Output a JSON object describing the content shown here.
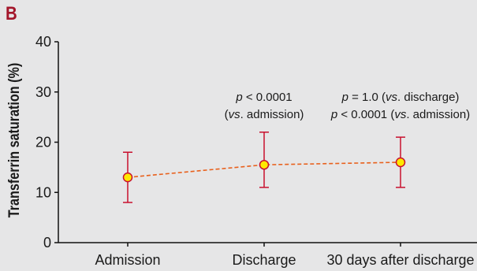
{
  "panel_label": "B",
  "chart_data": {
    "type": "line",
    "title": "",
    "xlabel": "",
    "ylabel": "Transferrin saturation (%)",
    "ylim": [
      0,
      40
    ],
    "yticks": [
      "0",
      "10",
      "20",
      "30",
      "40"
    ],
    "grid": false,
    "categories": [
      "Admission",
      "Discharge",
      "30 days after discharge"
    ],
    "series": [
      {
        "values": [
          13,
          15.5,
          16
        ],
        "error_low": [
          8,
          11,
          11
        ],
        "error_high": [
          18,
          22,
          21
        ],
        "line_color": "#e8601c",
        "line_style": "dashed",
        "marker_fill": "#ffe800",
        "marker_edge": "#c8102e",
        "errorbar_color": "#c8102e"
      }
    ],
    "annotations": [
      {
        "category_index": 1,
        "lines": [
          [
            {
              "t": "p",
              "i": true
            },
            {
              "t": " < 0.0001",
              "i": false
            }
          ],
          [
            {
              "t": "(",
              "i": false
            },
            {
              "t": "vs",
              "i": true
            },
            {
              "t": ". admission)",
              "i": false
            }
          ]
        ]
      },
      {
        "category_index": 2,
        "lines": [
          [
            {
              "t": "p",
              "i": true
            },
            {
              "t": " = 1.0 (",
              "i": false
            },
            {
              "t": "vs",
              "i": true
            },
            {
              "t": ". discharge)",
              "i": false
            }
          ],
          [
            {
              "t": "p",
              "i": true
            },
            {
              "t": " < 0.0001 (",
              "i": false
            },
            {
              "t": "vs",
              "i": true
            },
            {
              "t": ". admission)",
              "i": false
            }
          ]
        ]
      }
    ]
  }
}
